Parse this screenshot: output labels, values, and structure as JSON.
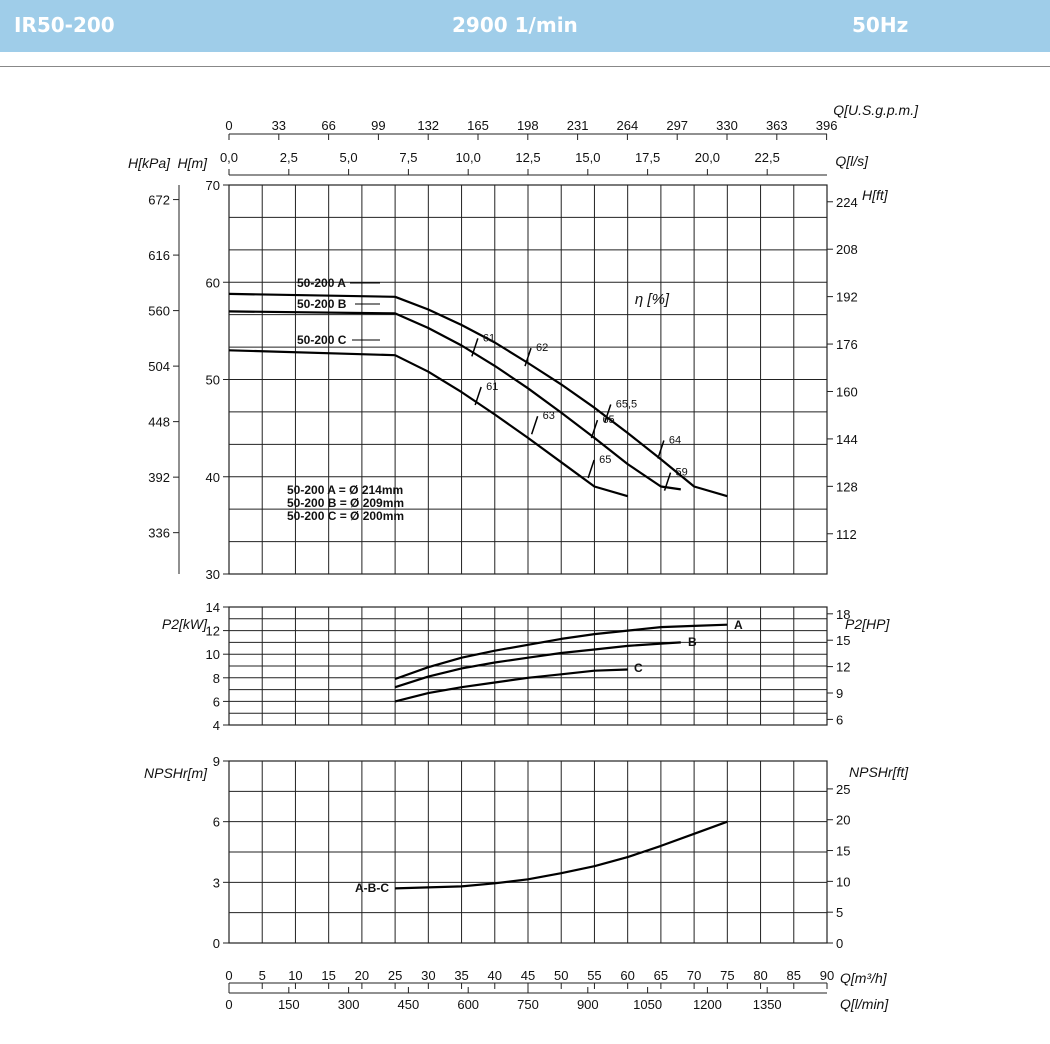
{
  "header": {
    "model": "IR50-200",
    "speed": "2900 1/min",
    "frequency": "50Hz"
  },
  "colors": {
    "header_bg": "#9fcde9",
    "header_text": "#ffffff",
    "grid": "#222222",
    "curve": "#000000"
  },
  "chart_data": {
    "type": "line",
    "flow_axes": {
      "m3h": {
        "label": "Q[m³/h]",
        "range": [
          0,
          90
        ],
        "ticks": [
          "0",
          "5",
          "10",
          "15",
          "20",
          "25",
          "30",
          "35",
          "40",
          "45",
          "50",
          "55",
          "60",
          "65",
          "70",
          "75",
          "80",
          "85",
          "90"
        ]
      },
      "lmin": {
        "label": "Q[l/min]",
        "ticks": [
          "0",
          "150",
          "300",
          "450",
          "600",
          "750",
          "900",
          "1050",
          "1200",
          "1350"
        ]
      },
      "ls": {
        "label": "Q[l/s]",
        "ticks": [
          "0,0",
          "2,5",
          "5,0",
          "7,5",
          "10,0",
          "12,5",
          "15,0",
          "17,5",
          "20,0",
          "22,5"
        ]
      },
      "usgpm": {
        "label": "Q[U.S.g.p.m.]",
        "ticks": [
          "0",
          "33",
          "66",
          "99",
          "132",
          "165",
          "198",
          "231",
          "264",
          "297",
          "330",
          "363",
          "396"
        ]
      }
    },
    "head_panel": {
      "ylabel": "H[m]",
      "ylim": [
        30,
        70
      ],
      "yticks": [
        "30",
        "40",
        "50",
        "60",
        "70"
      ],
      "kpa_label": "H[kPa]",
      "kpa_ticks": [
        "336",
        "392",
        "448",
        "504",
        "560",
        "616",
        "672"
      ],
      "ft_label": "H[ft]",
      "ft_ticks": [
        "112",
        "128",
        "144",
        "160",
        "176",
        "192",
        "208",
        "224"
      ],
      "eta_label": "η [%]",
      "series": [
        {
          "name": "50-200 A",
          "x": [
            0,
            25,
            30,
            35,
            40,
            45,
            50,
            55,
            60,
            65,
            70,
            75
          ],
          "y": [
            58.8,
            58.5,
            57.2,
            55.6,
            53.8,
            51.7,
            49.5,
            47.1,
            44.5,
            41.8,
            39.0,
            38.0
          ]
        },
        {
          "name": "50-200 B",
          "x": [
            0,
            25,
            30,
            35,
            40,
            45,
            50,
            55,
            60,
            65,
            68
          ],
          "y": [
            57.0,
            56.8,
            55.3,
            53.5,
            51.4,
            49.1,
            46.6,
            44.0,
            41.3,
            39.0,
            38.7
          ]
        },
        {
          "name": "50-200 C",
          "x": [
            0,
            25,
            30,
            35,
            40,
            45,
            50,
            55,
            60
          ],
          "y": [
            53.0,
            52.5,
            50.8,
            48.7,
            46.4,
            44.0,
            41.5,
            39.0,
            38.0
          ]
        }
      ],
      "efficiency_marks": [
        {
          "label": "61",
          "x": 37.0,
          "y": 53.3
        },
        {
          "label": "62",
          "x": 45.0,
          "y": 52.3
        },
        {
          "label": "65,5",
          "x": 57.0,
          "y": 46.5
        },
        {
          "label": "64",
          "x": 65.0,
          "y": 42.8
        },
        {
          "label": "61",
          "x": 37.5,
          "y": 48.3
        },
        {
          "label": "63",
          "x": 46.0,
          "y": 45.3
        },
        {
          "label": "65",
          "x": 55.0,
          "y": 44.9
        },
        {
          "label": "65",
          "x": 54.5,
          "y": 40.8
        },
        {
          "label": "59",
          "x": 66.0,
          "y": 39.5
        }
      ],
      "diameters": [
        "50-200 A = Ø 214mm",
        "50-200 B = Ø 209mm",
        "50-200 C = Ø 200mm"
      ]
    },
    "power_panel": {
      "ylabel": "P2[kW]",
      "ylim": [
        4,
        14
      ],
      "yticks": [
        "4",
        "6",
        "8",
        "10",
        "12",
        "14"
      ],
      "hp_label": "P2[HP]",
      "hp_ticks": [
        "6",
        "9",
        "12",
        "15",
        "18"
      ],
      "series": [
        {
          "name": "A",
          "x": [
            25,
            30,
            35,
            40,
            45,
            50,
            55,
            60,
            65,
            70,
            75
          ],
          "y": [
            7.9,
            8.9,
            9.7,
            10.3,
            10.8,
            11.3,
            11.7,
            12.0,
            12.3,
            12.4,
            12.5
          ]
        },
        {
          "name": "B",
          "x": [
            25,
            30,
            35,
            40,
            45,
            50,
            55,
            60,
            65,
            68
          ],
          "y": [
            7.2,
            8.1,
            8.8,
            9.3,
            9.7,
            10.1,
            10.4,
            10.7,
            10.9,
            11.0
          ]
        },
        {
          "name": "C",
          "x": [
            25,
            30,
            35,
            40,
            45,
            50,
            55,
            60
          ],
          "y": [
            6.0,
            6.7,
            7.2,
            7.6,
            8.0,
            8.3,
            8.6,
            8.7
          ]
        }
      ]
    },
    "npsh_panel": {
      "ylabel": "NPSHr[m]",
      "ylim": [
        0,
        9
      ],
      "yticks": [
        "0",
        "3",
        "6",
        "9"
      ],
      "ft_label": "NPSHr[ft]",
      "ft_ticks": [
        "0",
        "5",
        "10",
        "15",
        "20",
        "25"
      ],
      "series": [
        {
          "name": "A-B-C",
          "x": [
            25,
            30,
            35,
            40,
            45,
            50,
            55,
            60,
            65,
            70,
            75
          ],
          "y": [
            2.7,
            2.75,
            2.8,
            2.95,
            3.15,
            3.45,
            3.8,
            4.25,
            4.8,
            5.4,
            6.0
          ]
        }
      ]
    }
  }
}
